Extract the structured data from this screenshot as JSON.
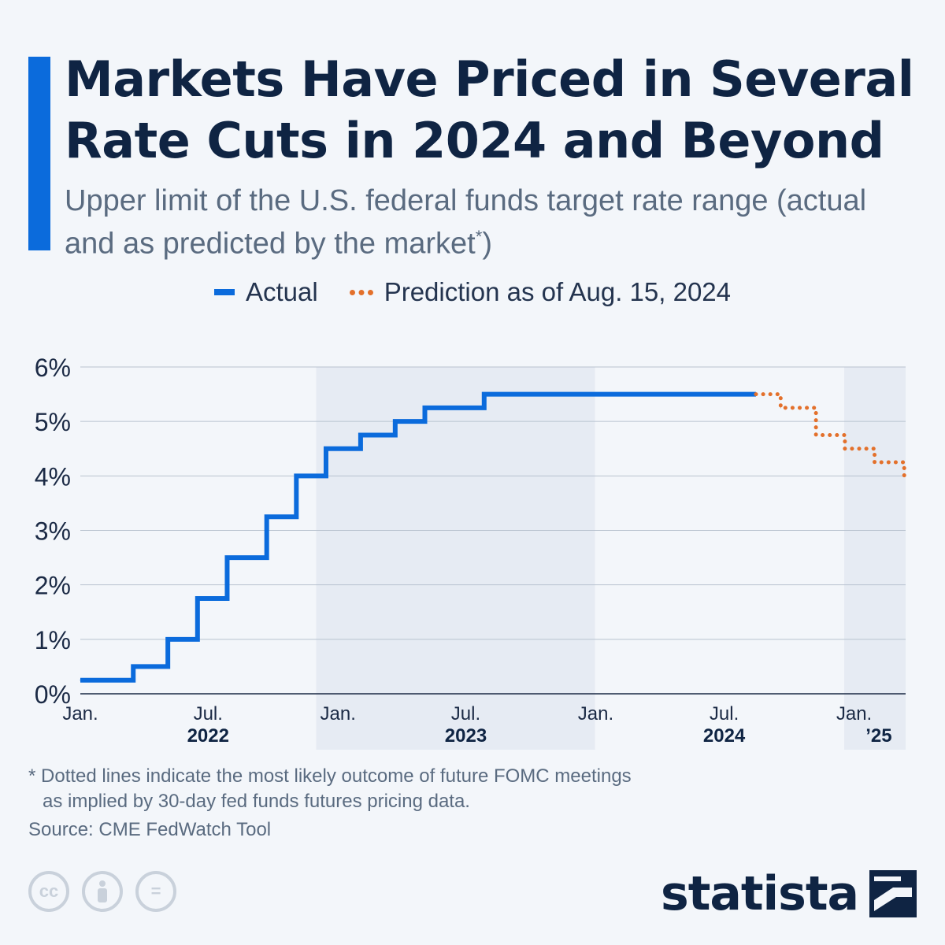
{
  "header": {
    "title": "Markets Have Priced in Several Rate Cuts in 2024 and Beyond",
    "subtitle": "Upper limit of the U.S. federal funds target rate range (actual and as predicted by the market",
    "subtitle_mark": "*",
    "subtitle_end": ")"
  },
  "legend": {
    "actual_label": "Actual",
    "prediction_label": "Prediction as of Aug. 15, 2024"
  },
  "colors": {
    "actual": "#0b6bdc",
    "prediction": "#e3702b",
    "accent": "#0b6bdc",
    "shade": "#e6ebf3",
    "text": "#1b2a45"
  },
  "chart_data": {
    "type": "line",
    "interpolation": "step-after",
    "x_axis": "date",
    "ylim": [
      0,
      6
    ],
    "y_ticks": [
      "0%",
      "1%",
      "2%",
      "3%",
      "4%",
      "5%",
      "6%"
    ],
    "y_tick_values": [
      0,
      1,
      2,
      3,
      4,
      5,
      6
    ],
    "grid": true,
    "legend_position": "top-center",
    "x_range": [
      "2022-01-01",
      "2025-03-15"
    ],
    "x_ticks": [
      {
        "date": "2022-01-01",
        "label": "Jan."
      },
      {
        "date": "2022-07-01",
        "label": "Jul."
      },
      {
        "date": "2023-01-01",
        "label": "Jan."
      },
      {
        "date": "2023-07-01",
        "label": "Jul."
      },
      {
        "date": "2024-01-01",
        "label": "Jan."
      },
      {
        "date": "2024-07-01",
        "label": "Jul."
      },
      {
        "date": "2025-01-01",
        "label": "Jan."
      }
    ],
    "year_labels": [
      {
        "label": "2022",
        "date": "2022-07-01"
      },
      {
        "label": "2023",
        "date": "2023-07-01"
      },
      {
        "label": "2024",
        "date": "2024-07-01"
      },
      {
        "label": "’25",
        "date": "2025-02-05"
      }
    ],
    "shaded_periods": [
      {
        "start": "2022-12-01",
        "end": "2023-12-31"
      },
      {
        "start": "2024-12-18",
        "end": "2025-03-15"
      }
    ],
    "series": [
      {
        "name": "Actual",
        "color": "#0b6bdc",
        "points": [
          {
            "x": "2022-01-01",
            "y": 0.25
          },
          {
            "x": "2022-03-17",
            "y": 0.5
          },
          {
            "x": "2022-05-05",
            "y": 1.0
          },
          {
            "x": "2022-06-16",
            "y": 1.75
          },
          {
            "x": "2022-07-28",
            "y": 2.5
          },
          {
            "x": "2022-09-22",
            "y": 3.25
          },
          {
            "x": "2022-11-03",
            "y": 4.0
          },
          {
            "x": "2022-12-15",
            "y": 4.5
          },
          {
            "x": "2023-02-02",
            "y": 4.75
          },
          {
            "x": "2023-03-23",
            "y": 5.0
          },
          {
            "x": "2023-05-04",
            "y": 5.25
          },
          {
            "x": "2023-07-27",
            "y": 5.5
          },
          {
            "x": "2024-08-15",
            "y": 5.5
          }
        ]
      },
      {
        "name": "Prediction as of Aug. 15, 2024",
        "color": "#e3702b",
        "points": [
          {
            "x": "2024-08-15",
            "y": 5.5
          },
          {
            "x": "2024-09-19",
            "y": 5.25
          },
          {
            "x": "2024-11-08",
            "y": 4.75
          },
          {
            "x": "2024-12-19",
            "y": 4.5
          },
          {
            "x": "2025-01-30",
            "y": 4.25
          },
          {
            "x": "2025-03-13",
            "y": 4.0
          },
          {
            "x": "2025-03-15",
            "y": 4.0
          }
        ]
      }
    ]
  },
  "footer": {
    "footnote_line1": "* Dotted lines indicate the most likely outcome of future FOMC meetings",
    "footnote_line2": "as implied by 30-day fed funds futures pricing data.",
    "source": "Source: CME FedWatch Tool",
    "brand": "statista",
    "cc_icons": [
      "cc-icon",
      "attribution-icon",
      "no-derivatives-icon"
    ],
    "cc_text": "cc",
    "nd_text": "="
  }
}
